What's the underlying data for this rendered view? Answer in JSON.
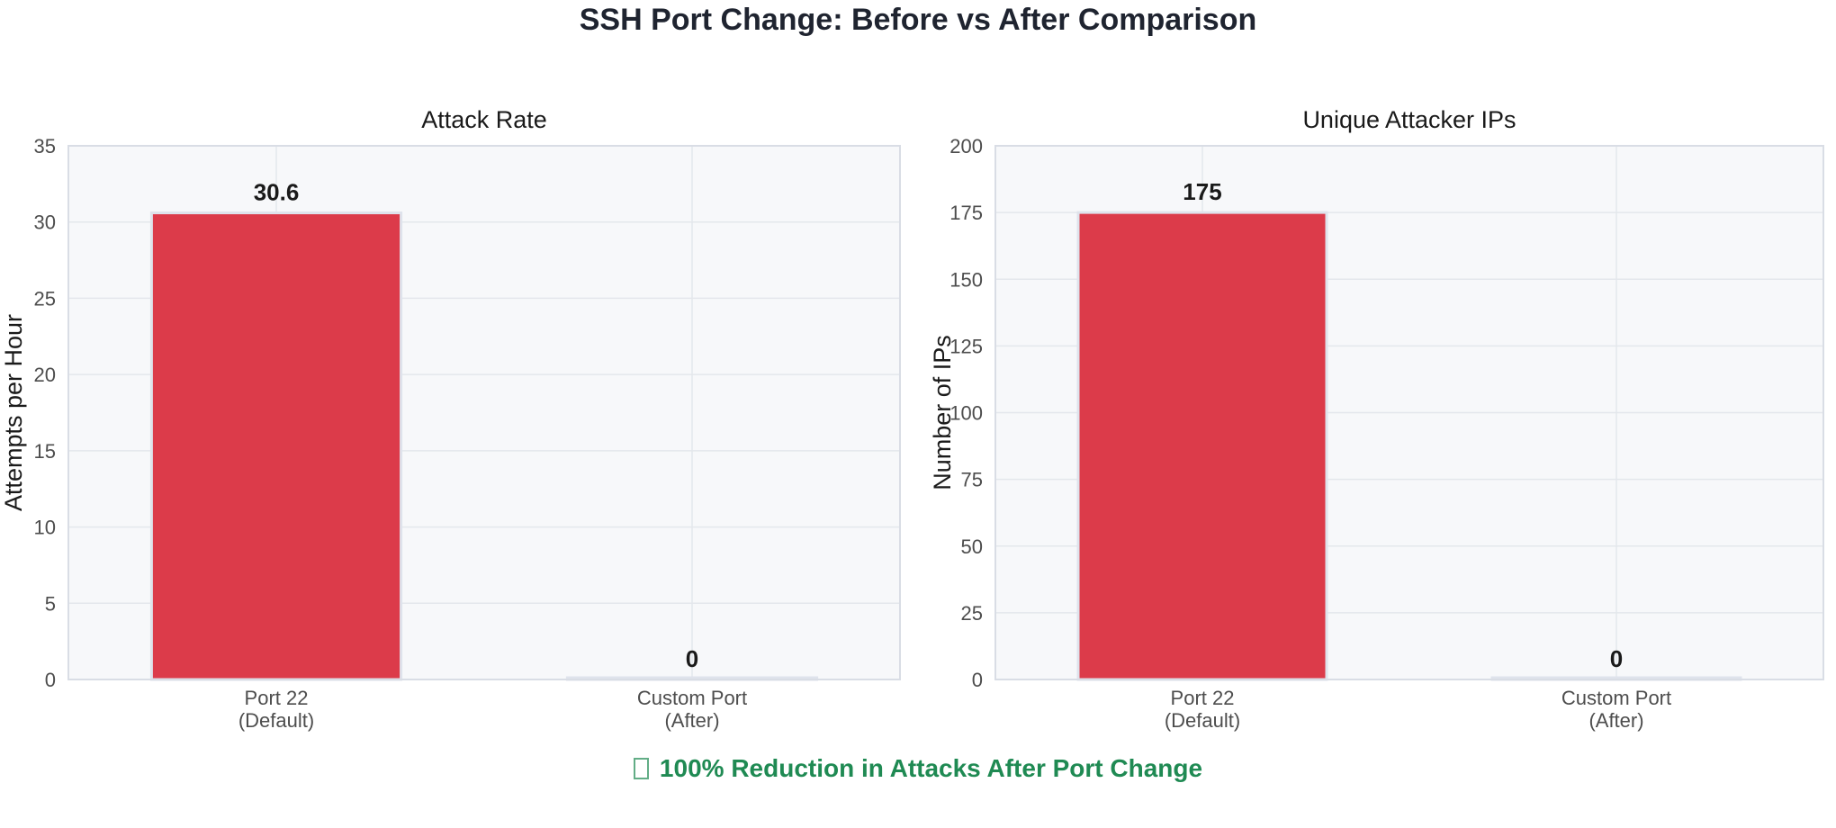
{
  "title": "SSH Port Change: Before vs After Comparison",
  "footnote": "100% Reduction in Attacks After Port Change",
  "colors": {
    "bar_default": "#dc3b4a",
    "bar_after": "#2a9d5c",
    "plot_bg": "#f7f8fa",
    "grid": "#e4e7ec",
    "footnote": "#1f8a53"
  },
  "chart_data": [
    {
      "type": "bar",
      "title": "Attack Rate",
      "xlabel": "",
      "ylabel": "Attempts per Hour",
      "categories": [
        "Port 22\n(Default)",
        "Custom Port\n(After)"
      ],
      "values": [
        30.6,
        0
      ],
      "value_labels": [
        "30.6",
        "0"
      ],
      "ylim": [
        0,
        35
      ],
      "yticks": [
        0,
        5,
        10,
        15,
        20,
        25,
        30,
        35
      ],
      "grid": true
    },
    {
      "type": "bar",
      "title": "Unique Attacker IPs",
      "xlabel": "",
      "ylabel": "Number of IPs",
      "categories": [
        "Port 22\n(Default)",
        "Custom Port\n(After)"
      ],
      "values": [
        175,
        0
      ],
      "value_labels": [
        "175",
        "0"
      ],
      "ylim": [
        0,
        200
      ],
      "yticks": [
        0,
        25,
        50,
        75,
        100,
        125,
        150,
        175,
        200
      ],
      "grid": true
    }
  ]
}
